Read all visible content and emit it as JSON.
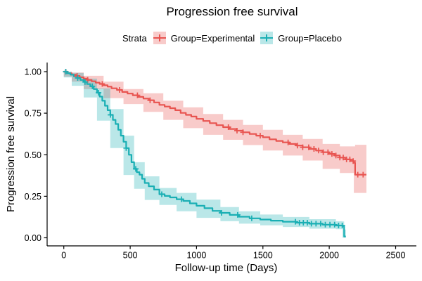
{
  "chart_data": {
    "type": "line",
    "subtype": "kaplan-meier-step",
    "title": "Progression free survival",
    "xlabel": "Follow-up time (Days)",
    "ylabel": "Progression free survival",
    "xlim": [
      0,
      2500
    ],
    "ylim": [
      0,
      1
    ],
    "grid": false,
    "legend_position": "top",
    "legend_title": "Strata",
    "x_ticks": [
      {
        "v": 0,
        "label": "0"
      },
      {
        "v": 500,
        "label": "500"
      },
      {
        "v": 1000,
        "label": "1000"
      },
      {
        "v": 1500,
        "label": "1500"
      },
      {
        "v": 2000,
        "label": "2000"
      },
      {
        "v": 2500,
        "label": "2500"
      }
    ],
    "y_ticks": [
      {
        "v": 0.0,
        "label": "0.00"
      },
      {
        "v": 0.25,
        "label": "0.25"
      },
      {
        "v": 0.5,
        "label": "0.50"
      },
      {
        "v": 0.75,
        "label": "0.75"
      },
      {
        "v": 1.0,
        "label": "1.00"
      }
    ],
    "axis_color": "#000000",
    "series": [
      {
        "name": "Group=Experimental",
        "color": "#E85450",
        "fill": "rgba(232,84,80,0.30)",
        "points": [
          [
            0,
            1.0
          ],
          [
            30,
            0.99
          ],
          [
            60,
            0.982
          ],
          [
            90,
            0.974
          ],
          [
            120,
            0.966
          ],
          [
            150,
            0.958
          ],
          [
            180,
            0.95
          ],
          [
            210,
            0.942
          ],
          [
            240,
            0.934
          ],
          [
            270,
            0.926
          ],
          [
            300,
            0.918
          ],
          [
            330,
            0.91
          ],
          [
            360,
            0.9
          ],
          [
            400,
            0.89
          ],
          [
            440,
            0.878
          ],
          [
            480,
            0.868
          ],
          [
            520,
            0.858
          ],
          [
            560,
            0.848
          ],
          [
            600,
            0.838
          ],
          [
            640,
            0.828
          ],
          [
            680,
            0.815
          ],
          [
            720,
            0.8
          ],
          [
            760,
            0.79
          ],
          [
            800,
            0.78
          ],
          [
            840,
            0.768
          ],
          [
            880,
            0.752
          ],
          [
            920,
            0.74
          ],
          [
            960,
            0.73
          ],
          [
            1000,
            0.716
          ],
          [
            1050,
            0.703
          ],
          [
            1100,
            0.69
          ],
          [
            1150,
            0.678
          ],
          [
            1200,
            0.666
          ],
          [
            1250,
            0.655
          ],
          [
            1300,
            0.645
          ],
          [
            1350,
            0.635
          ],
          [
            1400,
            0.625
          ],
          [
            1450,
            0.615
          ],
          [
            1500,
            0.605
          ],
          [
            1550,
            0.593
          ],
          [
            1600,
            0.583
          ],
          [
            1650,
            0.574
          ],
          [
            1700,
            0.565
          ],
          [
            1750,
            0.555
          ],
          [
            1800,
            0.545
          ],
          [
            1850,
            0.535
          ],
          [
            1900,
            0.525
          ],
          [
            1950,
            0.515
          ],
          [
            2000,
            0.505
          ],
          [
            2040,
            0.495
          ],
          [
            2080,
            0.483
          ],
          [
            2120,
            0.472
          ],
          [
            2160,
            0.462
          ],
          [
            2185,
            0.452
          ],
          [
            2195,
            0.38
          ],
          [
            2280,
            0.38
          ]
        ],
        "ci": [
          [
            0,
            1.0,
            1.0
          ],
          [
            60,
            0.97,
            0.995
          ],
          [
            150,
            0.94,
            0.975
          ],
          [
            300,
            0.895,
            0.94
          ],
          [
            450,
            0.84,
            0.895
          ],
          [
            600,
            0.805,
            0.87
          ],
          [
            750,
            0.758,
            0.825
          ],
          [
            900,
            0.71,
            0.785
          ],
          [
            1050,
            0.66,
            0.745
          ],
          [
            1200,
            0.62,
            0.71
          ],
          [
            1350,
            0.59,
            0.68
          ],
          [
            1500,
            0.558,
            0.65
          ],
          [
            1650,
            0.525,
            0.62
          ],
          [
            1800,
            0.495,
            0.595
          ],
          [
            1950,
            0.465,
            0.565
          ],
          [
            2080,
            0.415,
            0.55
          ],
          [
            2185,
            0.39,
            0.55
          ],
          [
            2195,
            0.27,
            0.56
          ],
          [
            2280,
            0.27,
            0.56
          ]
        ],
        "censor_times": [
          15,
          100,
          180,
          290,
          420,
          555,
          650,
          1240,
          1305,
          1350,
          1480,
          1690,
          1760,
          1800,
          1845,
          1885,
          1920,
          1955,
          1990,
          2020,
          2050,
          2080,
          2105,
          2130,
          2155,
          2180,
          2215,
          2255
        ]
      },
      {
        "name": "Group=Placebo",
        "color": "#1AAFB4",
        "fill": "rgba(26,175,180,0.30)",
        "points": [
          [
            0,
            1.0
          ],
          [
            25,
            0.99
          ],
          [
            50,
            0.982
          ],
          [
            75,
            0.972
          ],
          [
            100,
            0.962
          ],
          [
            125,
            0.95
          ],
          [
            150,
            0.938
          ],
          [
            175,
            0.925
          ],
          [
            200,
            0.912
          ],
          [
            225,
            0.895
          ],
          [
            250,
            0.873
          ],
          [
            270,
            0.85
          ],
          [
            290,
            0.825
          ],
          [
            310,
            0.795
          ],
          [
            330,
            0.768
          ],
          [
            350,
            0.74
          ],
          [
            370,
            0.71
          ],
          [
            390,
            0.685
          ],
          [
            410,
            0.65
          ],
          [
            430,
            0.615
          ],
          [
            450,
            0.578
          ],
          [
            470,
            0.54
          ],
          [
            490,
            0.5
          ],
          [
            510,
            0.455
          ],
          [
            530,
            0.415
          ],
          [
            550,
            0.395
          ],
          [
            570,
            0.38
          ],
          [
            590,
            0.355
          ],
          [
            610,
            0.33
          ],
          [
            640,
            0.31
          ],
          [
            680,
            0.29
          ],
          [
            720,
            0.262
          ],
          [
            760,
            0.252
          ],
          [
            800,
            0.243
          ],
          [
            850,
            0.232
          ],
          [
            900,
            0.222
          ],
          [
            950,
            0.207
          ],
          [
            1000,
            0.193
          ],
          [
            1060,
            0.178
          ],
          [
            1120,
            0.162
          ],
          [
            1180,
            0.15
          ],
          [
            1250,
            0.138
          ],
          [
            1320,
            0.127
          ],
          [
            1400,
            0.117
          ],
          [
            1480,
            0.11
          ],
          [
            1560,
            0.103
          ],
          [
            1650,
            0.097
          ],
          [
            1750,
            0.091
          ],
          [
            1850,
            0.085
          ],
          [
            1950,
            0.079
          ],
          [
            2050,
            0.074
          ],
          [
            2100,
            0.071
          ],
          [
            2112,
            0.008
          ],
          [
            2125,
            0.008
          ]
        ],
        "ci": [
          [
            0,
            1.0,
            1.0
          ],
          [
            60,
            0.965,
            0.993
          ],
          [
            150,
            0.915,
            0.958
          ],
          [
            250,
            0.845,
            0.9
          ],
          [
            350,
            0.705,
            0.775
          ],
          [
            450,
            0.54,
            0.615
          ],
          [
            530,
            0.378,
            0.455
          ],
          [
            610,
            0.295,
            0.37
          ],
          [
            720,
            0.228,
            0.3
          ],
          [
            850,
            0.198,
            0.27
          ],
          [
            1000,
            0.16,
            0.23
          ],
          [
            1180,
            0.12,
            0.185
          ],
          [
            1320,
            0.1,
            0.16
          ],
          [
            1480,
            0.085,
            0.14
          ],
          [
            1650,
            0.075,
            0.125
          ],
          [
            1850,
            0.065,
            0.112
          ],
          [
            2050,
            0.055,
            0.1
          ],
          [
            2100,
            0.052,
            0.098
          ],
          [
            2112,
            0.0,
            0.05
          ],
          [
            2125,
            0.0,
            0.05
          ]
        ],
        "censor_times": [
          15,
          105,
          160,
          215,
          262,
          352,
          470,
          542,
          738,
          886,
          1188,
          1310,
          1416,
          1745,
          1775,
          1805,
          1835,
          1865,
          1900,
          1935,
          1970,
          2005,
          2040,
          2070,
          2098
        ]
      }
    ]
  }
}
